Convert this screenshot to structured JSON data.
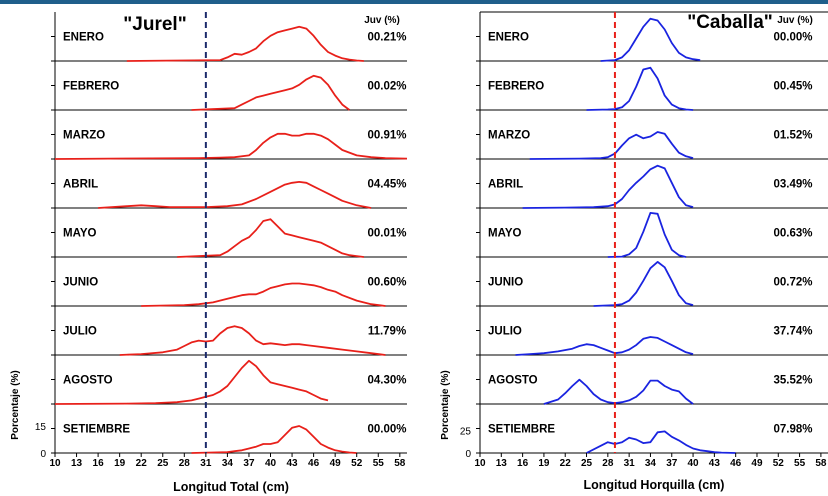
{
  "chart_data": [
    {
      "type": "line",
      "title": "\"Jurel\"",
      "xlabel": "Longitud Total (cm)",
      "ylabel": "Porcentaje (%)",
      "header_right": "Juv (%)",
      "x_ticks": [
        10,
        13,
        16,
        19,
        22,
        25,
        28,
        31,
        34,
        37,
        40,
        43,
        46,
        49,
        52,
        55,
        58
      ],
      "xlim": [
        10,
        59
      ],
      "panel_ylim": [
        0,
        25
      ],
      "y_ticks": [
        0,
        15
      ],
      "reference_line_x": 31,
      "reference_color": "#1b2a6b",
      "line_color": "#e8201a",
      "panels": [
        {
          "month": "ENERO",
          "juv": "00.21%",
          "x": [
            20,
            33,
            34,
            35,
            36,
            37,
            38,
            39,
            40,
            41,
            42,
            43,
            44,
            45,
            46,
            47,
            48,
            49,
            50,
            51,
            52,
            53
          ],
          "y": [
            0,
            0.5,
            2,
            4,
            3.5,
            5,
            7,
            11,
            14,
            16,
            17,
            18,
            19,
            18,
            14,
            9,
            5,
            3,
            1.5,
            0.8,
            0.3,
            0
          ]
        },
        {
          "month": "FEBRERO",
          "juv": "00.02%",
          "x": [
            29,
            35,
            36,
            37,
            38,
            39,
            40,
            41,
            42,
            43,
            44,
            45,
            46,
            47,
            48,
            49,
            50,
            51
          ],
          "y": [
            0,
            1,
            3,
            5,
            7,
            8,
            9,
            10,
            11,
            12,
            14,
            17,
            19,
            18,
            14,
            8,
            3,
            0
          ]
        },
        {
          "month": "MARZO",
          "juv": "00.91%",
          "x": [
            10,
            20,
            30,
            33,
            35,
            37,
            38,
            39,
            40,
            41,
            42,
            43,
            44,
            45,
            46,
            47,
            48,
            49,
            50,
            52,
            54,
            56,
            59
          ],
          "y": [
            0,
            0.3,
            0.5,
            0.8,
            1,
            2,
            5,
            9,
            12,
            14,
            14,
            13,
            13,
            14,
            14,
            13,
            11,
            8,
            5,
            2,
            1,
            0.5,
            0.2
          ]
        },
        {
          "month": "ABRIL",
          "juv": "04.45%",
          "x": [
            16,
            20,
            22,
            24,
            26,
            28,
            31,
            34,
            36,
            38,
            40,
            41,
            42,
            43,
            44,
            45,
            46,
            47,
            48,
            49,
            50,
            52,
            54
          ],
          "y": [
            0,
            1,
            1.5,
            1,
            0.5,
            0.5,
            0.5,
            1,
            2,
            5,
            9,
            11,
            13,
            14,
            14.5,
            14,
            12,
            10,
            8,
            6,
            4,
            1.5,
            0
          ]
        },
        {
          "month": "MAYO",
          "juv": "00.01%",
          "x": [
            27,
            33,
            34,
            35,
            36,
            37,
            38,
            39,
            40,
            41,
            42,
            43,
            44,
            45,
            46,
            47,
            48,
            49,
            50,
            51,
            52,
            53
          ],
          "y": [
            0,
            1,
            3,
            6,
            9,
            11,
            15,
            20,
            21,
            17,
            13,
            12,
            11,
            10,
            9,
            8,
            6,
            4,
            2,
            1,
            0.5,
            0
          ]
        },
        {
          "month": "JUNIO",
          "juv": "00.60%",
          "x": [
            22,
            28,
            30,
            32,
            34,
            36,
            37,
            38,
            39,
            40,
            41,
            42,
            43,
            44,
            45,
            46,
            47,
            48,
            49,
            50,
            52,
            54,
            56
          ],
          "y": [
            0,
            0.5,
            1,
            2,
            4,
            6,
            6.5,
            6.5,
            8,
            10,
            11,
            12,
            12.5,
            12.5,
            12,
            11.5,
            10.5,
            9,
            8,
            6,
            3,
            1,
            0
          ]
        },
        {
          "month": "JULIO",
          "juv": "11.79%",
          "x": [
            19,
            22,
            25,
            27,
            28,
            29,
            30,
            31,
            32,
            33,
            34,
            35,
            36,
            37,
            38,
            39,
            40,
            41,
            42,
            43,
            44,
            45,
            46,
            48,
            50,
            52,
            54,
            56
          ],
          "y": [
            0,
            0.5,
            1.5,
            3,
            5,
            7,
            8,
            7.5,
            8,
            12,
            15,
            16,
            15,
            12,
            8,
            6,
            6.5,
            6,
            5.5,
            6,
            6,
            5.5,
            5,
            4,
            3,
            2,
            1,
            0
          ]
        },
        {
          "month": "AGOSTO",
          "juv": "04.30%",
          "x": [
            10,
            20,
            24,
            27,
            29,
            30,
            31,
            32,
            33,
            34,
            35,
            36,
            37,
            38,
            39,
            40,
            41,
            42,
            43,
            44,
            45,
            46,
            47,
            48
          ],
          "y": [
            0,
            0.2,
            0.5,
            1,
            2,
            3,
            4,
            5,
            7,
            10,
            15,
            20,
            24,
            21,
            16,
            12,
            11,
            10,
            9,
            8,
            7,
            5,
            3,
            2
          ]
        },
        {
          "month": "SETIEMBRE",
          "juv": "00.00%",
          "x": [
            29,
            34,
            35,
            36,
            37,
            38,
            39,
            40,
            41,
            42,
            43,
            44,
            45,
            46,
            47,
            48,
            49,
            50,
            51,
            52
          ],
          "y": [
            0,
            0.5,
            1,
            1.5,
            2.5,
            3.5,
            5,
            5,
            6,
            10,
            14,
            15,
            13,
            9,
            5,
            3,
            1.5,
            0.8,
            0.3,
            0
          ]
        }
      ]
    },
    {
      "type": "line",
      "title": "\"Caballa\"",
      "xlabel": "Longitud Horquilla (cm)",
      "ylabel": "Porcentaje (%)",
      "header_right": "Juv (%)",
      "x_ticks": [
        10,
        13,
        16,
        19,
        22,
        25,
        28,
        31,
        34,
        37,
        40,
        43,
        46,
        49,
        52,
        55,
        58
      ],
      "xlim": [
        10,
        59
      ],
      "panel_ylim": [
        0,
        50
      ],
      "y_ticks": [
        0,
        25
      ],
      "reference_line_x": 29,
      "reference_color": "#e8201a",
      "line_color": "#1a24e0",
      "panels": [
        {
          "month": "ENERO",
          "juv": "00.00%",
          "x": [
            27,
            29,
            30,
            31,
            32,
            33,
            34,
            35,
            36,
            37,
            38,
            39,
            40,
            41
          ],
          "y": [
            0,
            1,
            4,
            12,
            25,
            38,
            47,
            45,
            35,
            20,
            9,
            4,
            2,
            1
          ]
        },
        {
          "month": "FEBRERO",
          "juv": "00.45%",
          "x": [
            25,
            28,
            29,
            30,
            31,
            32,
            33,
            34,
            35,
            36,
            37,
            38,
            39,
            40
          ],
          "y": [
            0,
            0.5,
            1,
            3,
            10,
            26,
            45,
            47,
            35,
            16,
            6,
            2,
            0.5,
            0
          ]
        },
        {
          "month": "MARZO",
          "juv": "01.52%",
          "x": [
            17,
            24,
            27,
            28,
            29,
            30,
            31,
            32,
            33,
            34,
            35,
            36,
            37,
            38,
            39,
            40
          ],
          "y": [
            0,
            0.5,
            1,
            2,
            6,
            15,
            23,
            27,
            23,
            25,
            30,
            28,
            17,
            7,
            3,
            1
          ]
        },
        {
          "month": "ABRIL",
          "juv": "03.49%",
          "x": [
            16,
            22,
            26,
            27,
            28,
            29,
            30,
            31,
            32,
            33,
            34,
            35,
            36,
            37,
            38,
            39,
            40
          ],
          "y": [
            0,
            0.5,
            1,
            1.5,
            2,
            4,
            10,
            20,
            28,
            35,
            43,
            47,
            44,
            28,
            12,
            3,
            1
          ]
        },
        {
          "month": "MAYO",
          "juv": "00.63%",
          "x": [
            28,
            30,
            31,
            32,
            33,
            34,
            35,
            36,
            37,
            38,
            39
          ],
          "y": [
            0,
            0.5,
            3,
            10,
            28,
            49,
            48,
            25,
            8,
            2,
            0
          ]
        },
        {
          "month": "JUNIO",
          "juv": "00.72%",
          "x": [
            26,
            29,
            30,
            31,
            32,
            33,
            34,
            35,
            36,
            37,
            38,
            39,
            40
          ],
          "y": [
            0,
            1,
            2,
            6,
            15,
            28,
            42,
            49,
            43,
            28,
            12,
            3,
            1
          ]
        },
        {
          "month": "JULIO",
          "juv": "37.74%",
          "x": [
            15,
            17,
            19,
            21,
            23,
            24,
            25,
            26,
            27,
            28,
            29,
            30,
            31,
            32,
            33,
            34,
            35,
            36,
            37,
            38,
            39,
            40
          ],
          "y": [
            0,
            1,
            2,
            4,
            7,
            10,
            12,
            11,
            8,
            5,
            2,
            3,
            6,
            11,
            18,
            20,
            19,
            15,
            11,
            7,
            3,
            1
          ]
        },
        {
          "month": "AGOSTO",
          "juv": "35.52%",
          "x": [
            19,
            21,
            22,
            23,
            24,
            25,
            26,
            27,
            28,
            29,
            30,
            31,
            32,
            33,
            34,
            35,
            36,
            37,
            38,
            39,
            40
          ],
          "y": [
            0,
            5,
            12,
            20,
            27,
            20,
            11,
            5,
            2,
            1,
            2,
            4,
            8,
            15,
            26,
            26,
            20,
            16,
            14,
            6,
            0
          ]
        },
        {
          "month": "SETIEMBRE",
          "juv": "07.98%",
          "x": [
            25,
            27,
            28,
            29,
            30,
            31,
            32,
            33,
            34,
            35,
            36,
            37,
            38,
            39,
            40,
            41,
            42,
            43,
            44,
            46
          ],
          "y": [
            0,
            8,
            12,
            10,
            12,
            17,
            15,
            11,
            12,
            23,
            24,
            18,
            14,
            9,
            5,
            3,
            2,
            1,
            0.5,
            0
          ]
        }
      ]
    }
  ]
}
